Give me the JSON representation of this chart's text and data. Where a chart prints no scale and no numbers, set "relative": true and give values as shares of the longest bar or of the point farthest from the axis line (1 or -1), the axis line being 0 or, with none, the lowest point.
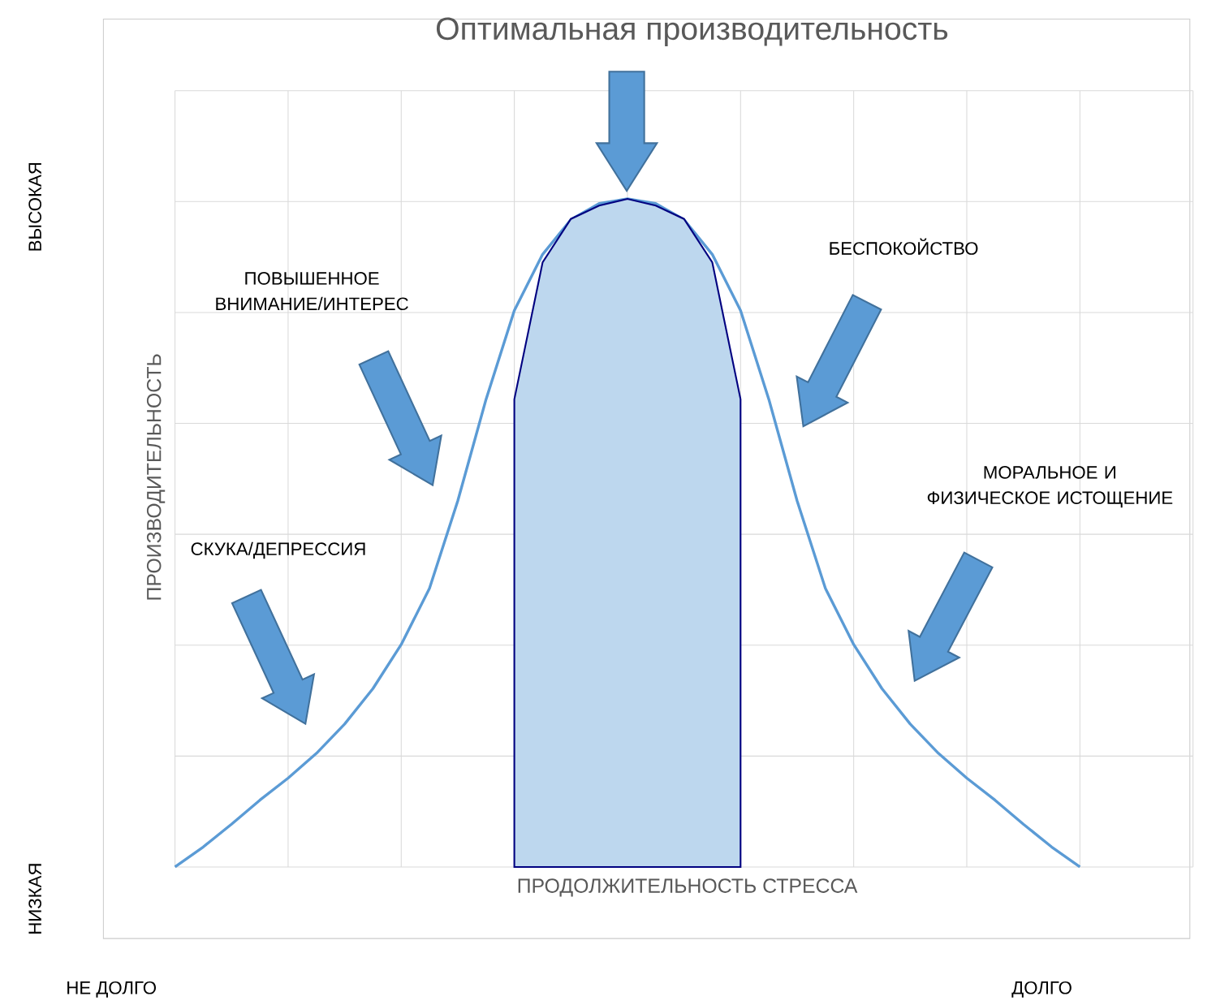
{
  "chart_data": {
    "type": "line",
    "title": "Оптимальная производительность",
    "xlabel": "ПРОДОЛЖИТЕЛЬНОСТЬ СТРЕССА",
    "ylabel": "ПРОИЗВОДИТЕЛЬНОСТЬ",
    "relative": true,
    "grid": true,
    "categories": [
      null,
      null,
      null,
      null,
      null,
      null,
      null,
      null,
      null,
      null,
      null,
      null,
      null,
      null,
      null,
      null,
      null,
      null,
      null,
      null,
      null,
      null,
      null,
      null,
      null,
      null,
      null,
      null,
      null,
      null,
      null,
      null,
      null,
      null,
      null,
      null,
      null
    ],
    "series": [
      {
        "type": "line",
        "color": "#5b9bd5",
        "values": [
          0,
          0.03,
          0.064,
          0.1,
          0.133,
          0.17,
          0.214,
          0.267,
          0.333,
          0.417,
          0.548,
          0.7,
          0.833,
          0.917,
          0.969,
          0.993,
          1,
          0.993,
          0.969,
          0.917,
          0.833,
          0.7,
          0.548,
          0.417,
          0.333,
          0.267,
          0.214,
          0.17,
          0.133,
          0.1,
          0.064,
          0.03,
          0,
          null,
          null,
          null,
          null
        ]
      },
      {
        "type": "area",
        "color": "#bdd7ee",
        "values": [
          null,
          null,
          null,
          null,
          null,
          null,
          null,
          null,
          null,
          null,
          null,
          null,
          0.7,
          0.905,
          0.97,
          0.99,
          1,
          0.99,
          0.97,
          0.905,
          0.7,
          null,
          null,
          null,
          null,
          null,
          null,
          null,
          null,
          null,
          null,
          null,
          null,
          null,
          null,
          null,
          null
        ]
      }
    ],
    "annotations": [
      "ПОВЫШЕННОЕ ВНИМАНИЕ/ИНТЕРЕС",
      "СКУКА/ДЕПРЕССИЯ",
      "БЕСПОКОЙСТВО",
      "МОРАЛЬНОЕ И ФИЗИЧЕСКОЕ ИСТОЩЕНИЕ",
      "ВЫСОКАЯ",
      "НИЗКАЯ",
      "НЕ ДОЛГО",
      "ДОЛГО"
    ]
  }
}
